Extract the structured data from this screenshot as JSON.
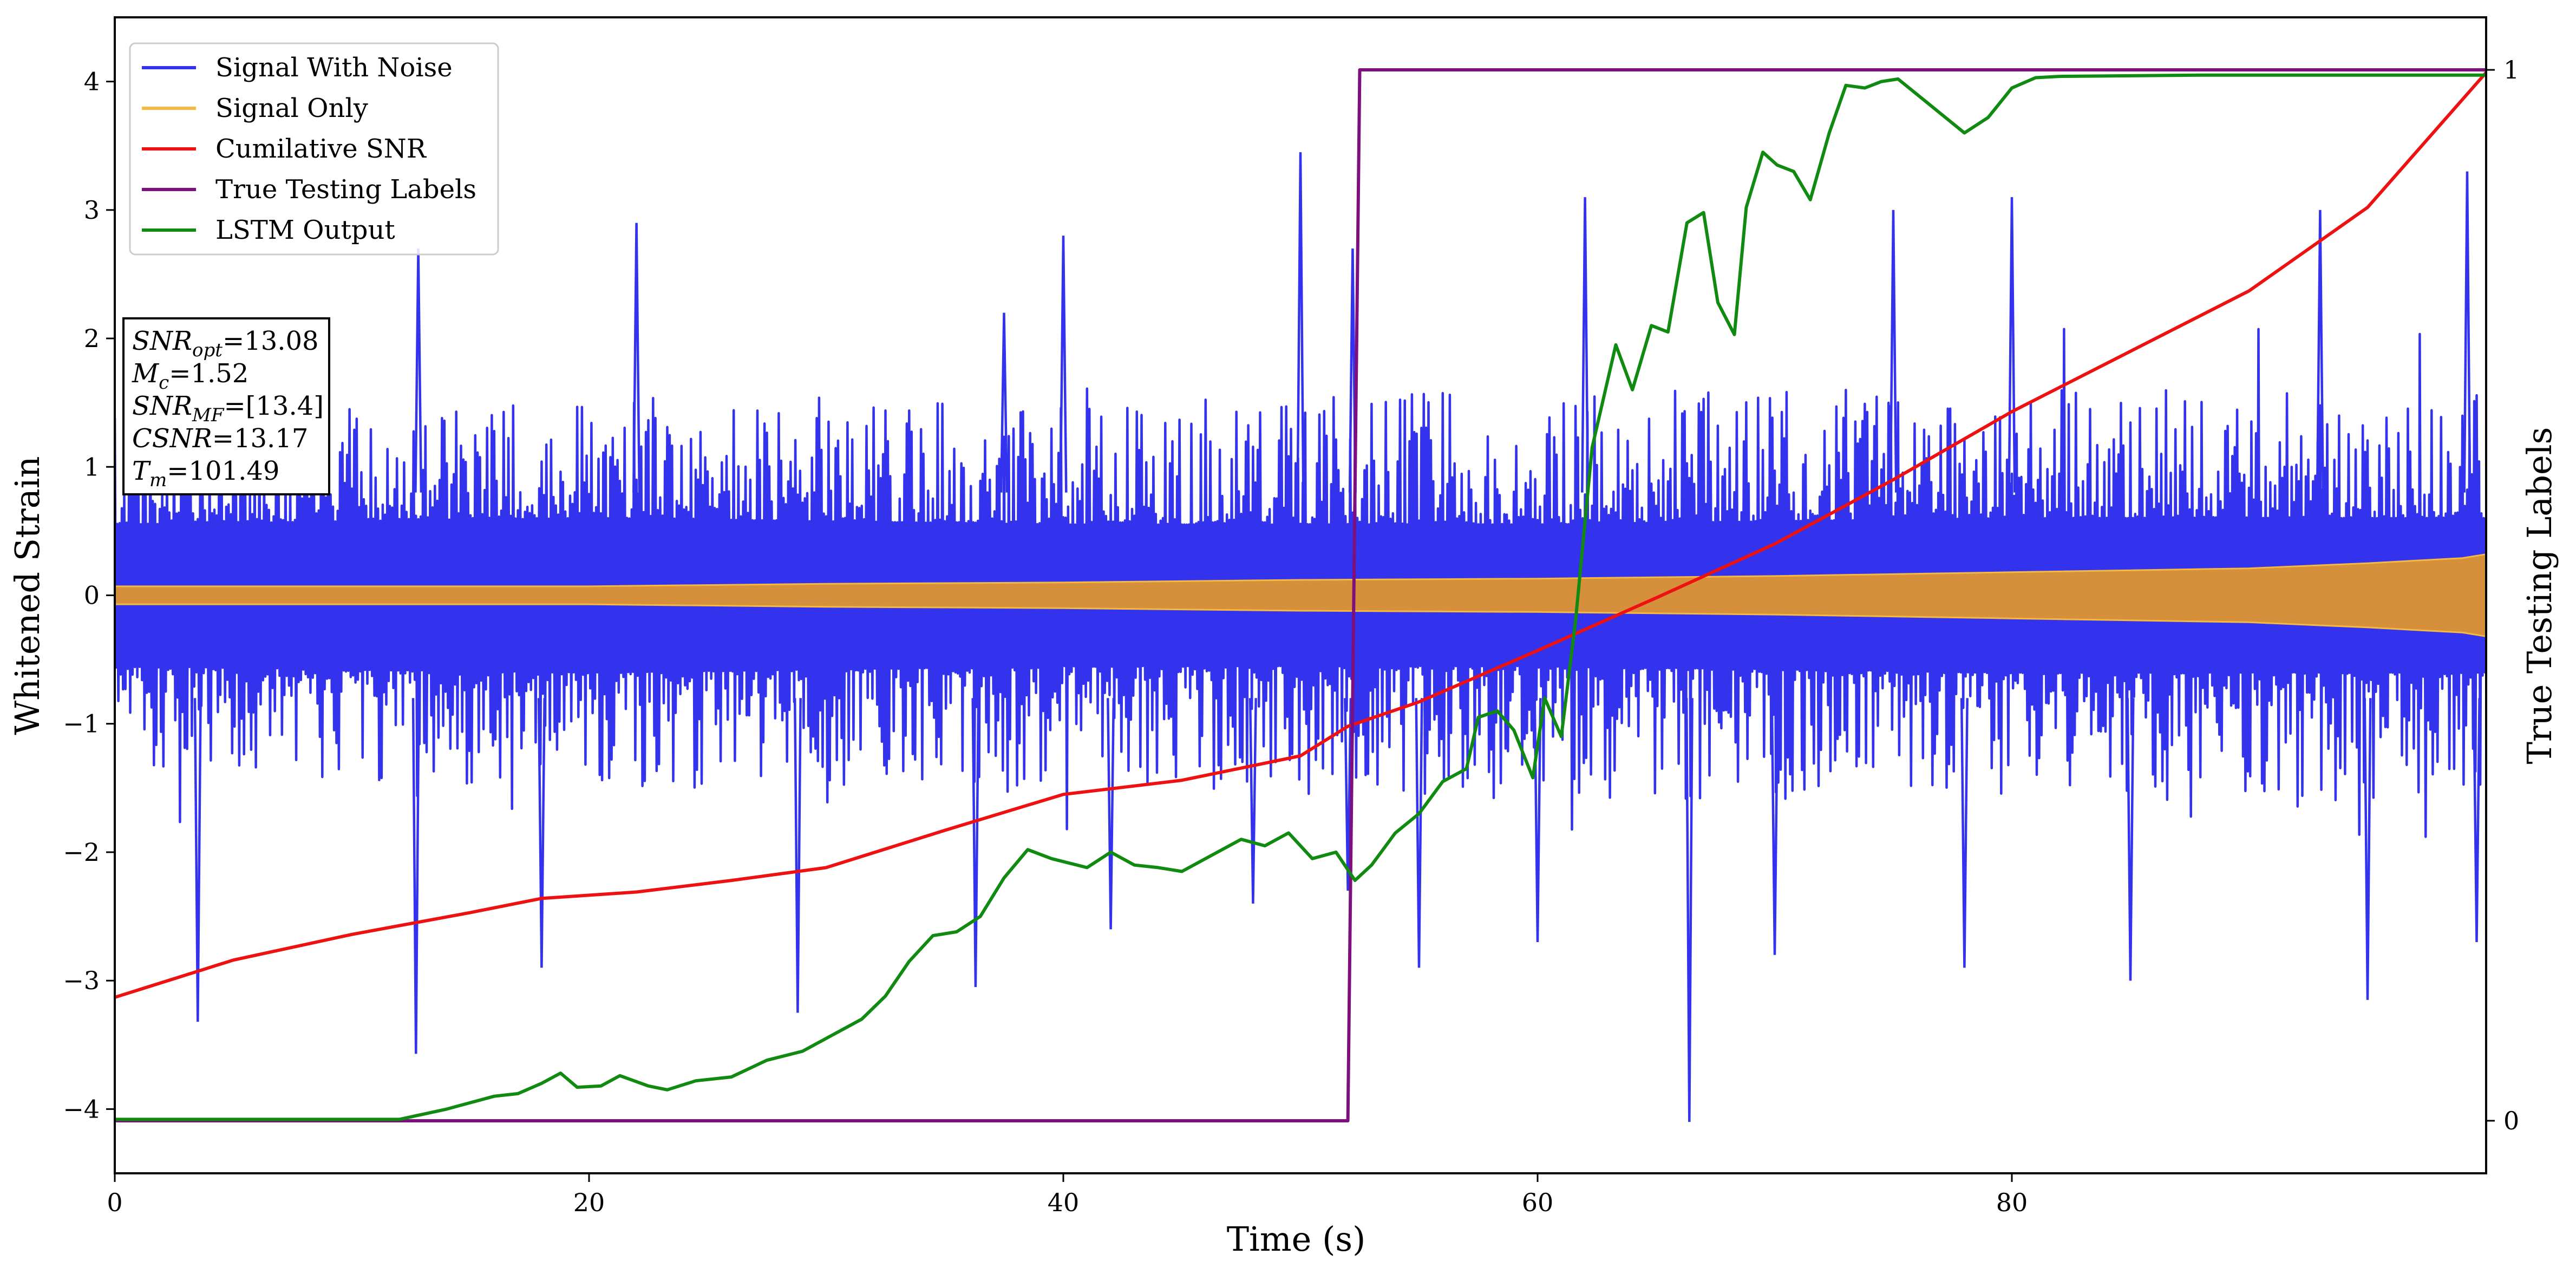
{
  "chart_data": {
    "type": "line",
    "xlabel": "Time (s)",
    "ylabel": "Whitened Strain",
    "y2label": "True Testing Labels",
    "xlim": [
      0,
      100
    ],
    "ylim": [
      -4.5,
      4.5
    ],
    "y2lim": [
      -0.05,
      1.05
    ],
    "x_ticks": [
      0,
      20,
      40,
      60,
      80
    ],
    "y_ticks": [
      -4,
      -3,
      -2,
      -1,
      0,
      1,
      2,
      3,
      4
    ],
    "y_tick_labels": [
      "−4",
      "−3",
      "−2",
      "−1",
      "0",
      "1",
      "2",
      "3",
      "4"
    ],
    "y2_ticks": [
      0,
      1
    ],
    "grid": false,
    "legend_position": "top-left",
    "legend": [
      {
        "label": "Signal With Noise",
        "color": "#3333ee"
      },
      {
        "label": "Signal Only",
        "color": "#f5b942"
      },
      {
        "label": "Cumilative SNR",
        "color": "#ee1111"
      },
      {
        "label": "True Testing Labels",
        "color": "#7e0f7e"
      },
      {
        "label": "LSTM Output",
        "color": "#108a10"
      }
    ],
    "annotation": [
      {
        "base": "SNR",
        "sub": "opt",
        "value": "=13.08"
      },
      {
        "base": "M",
        "sub": "c",
        "value": "=1.52"
      },
      {
        "base": "SNR",
        "sub": "MF",
        "value": "=[13.4]"
      },
      {
        "base": "CSNR",
        "sub": "",
        "value": "=13.17"
      },
      {
        "base": "T",
        "sub": "m",
        "value": "=101.49"
      }
    ],
    "series": [
      {
        "name": "Signal With Noise",
        "color": "#3333ee",
        "axis": "left",
        "kind": "dense-noise",
        "noise_band": [
          [
            0,
            0.55,
            1.4
          ],
          [
            20,
            0.6,
            1.5
          ],
          [
            40,
            0.55,
            1.5
          ],
          [
            60,
            0.55,
            1.6
          ],
          [
            80,
            0.6,
            1.6
          ],
          [
            100,
            0.6,
            1.6
          ]
        ],
        "spikes": [
          [
            3.5,
            -3.32
          ],
          [
            12.7,
            -3.57
          ],
          [
            12.8,
            2.7
          ],
          [
            18.0,
            -2.9
          ],
          [
            22.0,
            2.9
          ],
          [
            28.8,
            -3.25
          ],
          [
            36.3,
            -3.05
          ],
          [
            37.5,
            2.2
          ],
          [
            40.0,
            2.8
          ],
          [
            42.0,
            -2.6
          ],
          [
            48.0,
            -2.4
          ],
          [
            50.0,
            3.45
          ],
          [
            52.0,
            -2.3
          ],
          [
            52.2,
            2.7
          ],
          [
            55.0,
            -2.9
          ],
          [
            60.0,
            -2.7
          ],
          [
            62.0,
            3.1
          ],
          [
            66.4,
            -4.1
          ],
          [
            70.0,
            -2.8
          ],
          [
            75.0,
            3.0
          ],
          [
            78.0,
            -2.9
          ],
          [
            80.0,
            3.1
          ],
          [
            85.0,
            -3.0
          ],
          [
            93.0,
            3.0
          ],
          [
            95.0,
            -3.15
          ],
          [
            99.2,
            3.3
          ],
          [
            99.6,
            -2.7
          ]
        ]
      },
      {
        "name": "Signal Only",
        "color": "#f5b942",
        "axis": "left",
        "kind": "amplitude-band",
        "amplitude": [
          [
            0,
            0.07
          ],
          [
            10,
            0.07
          ],
          [
            20,
            0.07
          ],
          [
            30,
            0.09
          ],
          [
            40,
            0.1
          ],
          [
            50,
            0.12
          ],
          [
            60,
            0.13
          ],
          [
            70,
            0.15
          ],
          [
            80,
            0.18
          ],
          [
            90,
            0.21
          ],
          [
            95,
            0.25
          ],
          [
            99,
            0.29
          ],
          [
            100,
            0.32
          ]
        ]
      },
      {
        "name": "Cumilative SNR",
        "color": "#ee1111",
        "axis": "left",
        "points": [
          [
            0,
            -3.13
          ],
          [
            5,
            -2.84
          ],
          [
            10,
            -2.64
          ],
          [
            15,
            -2.47
          ],
          [
            18,
            -2.36
          ],
          [
            22,
            -2.31
          ],
          [
            26,
            -2.22
          ],
          [
            30,
            -2.12
          ],
          [
            35,
            -1.83
          ],
          [
            40,
            -1.55
          ],
          [
            45,
            -1.44
          ],
          [
            50,
            -1.25
          ],
          [
            52,
            -1.02
          ],
          [
            55,
            -0.83
          ],
          [
            60,
            -0.43
          ],
          [
            65,
            -0.02
          ],
          [
            70,
            0.4
          ],
          [
            75,
            0.9
          ],
          [
            80,
            1.43
          ],
          [
            85,
            1.9
          ],
          [
            90,
            2.37
          ],
          [
            95,
            3.02
          ],
          [
            100,
            4.07
          ]
        ]
      },
      {
        "name": "True Testing Labels",
        "color": "#7e0f7e",
        "axis": "right",
        "points": [
          [
            0,
            0
          ],
          [
            52.0,
            0
          ],
          [
            52.5,
            1
          ],
          [
            100,
            1
          ]
        ]
      },
      {
        "name": "LSTM Output",
        "color": "#108a10",
        "axis": "left",
        "points": [
          [
            0,
            -4.08
          ],
          [
            12,
            -4.08
          ],
          [
            13,
            -4.04
          ],
          [
            14,
            -4.0
          ],
          [
            15,
            -3.95
          ],
          [
            16,
            -3.9
          ],
          [
            17,
            -3.88
          ],
          [
            18,
            -3.8
          ],
          [
            18.8,
            -3.72
          ],
          [
            19.5,
            -3.83
          ],
          [
            20.5,
            -3.82
          ],
          [
            21.3,
            -3.74
          ],
          [
            22.5,
            -3.82
          ],
          [
            23.3,
            -3.85
          ],
          [
            24.5,
            -3.78
          ],
          [
            26,
            -3.75
          ],
          [
            27.5,
            -3.62
          ],
          [
            29,
            -3.55
          ],
          [
            30,
            -3.45
          ],
          [
            31.5,
            -3.3
          ],
          [
            32.5,
            -3.12
          ],
          [
            33.5,
            -2.85
          ],
          [
            34.5,
            -2.65
          ],
          [
            35.5,
            -2.62
          ],
          [
            36.5,
            -2.5
          ],
          [
            37.5,
            -2.2
          ],
          [
            38.5,
            -1.98
          ],
          [
            39.5,
            -2.05
          ],
          [
            41,
            -2.12
          ],
          [
            42,
            -2.0
          ],
          [
            43,
            -2.1
          ],
          [
            44,
            -2.12
          ],
          [
            45,
            -2.15
          ],
          [
            46.5,
            -2.0
          ],
          [
            47.5,
            -1.9
          ],
          [
            48.5,
            -1.95
          ],
          [
            49.5,
            -1.85
          ],
          [
            50.5,
            -2.05
          ],
          [
            51.5,
            -2.0
          ],
          [
            52.3,
            -2.22
          ],
          [
            53,
            -2.1
          ],
          [
            54,
            -1.85
          ],
          [
            55,
            -1.7
          ],
          [
            56,
            -1.45
          ],
          [
            57,
            -1.35
          ],
          [
            57.5,
            -0.95
          ],
          [
            58.3,
            -0.9
          ],
          [
            59,
            -1.05
          ],
          [
            59.8,
            -1.42
          ],
          [
            60.3,
            -0.8
          ],
          [
            61,
            -1.1
          ],
          [
            61.6,
            -0.2
          ],
          [
            62.3,
            1.15
          ],
          [
            63.3,
            1.95
          ],
          [
            64,
            1.6
          ],
          [
            64.8,
            2.1
          ],
          [
            65.5,
            2.05
          ],
          [
            66.3,
            2.9
          ],
          [
            67,
            2.98
          ],
          [
            67.6,
            2.28
          ],
          [
            68.3,
            2.03
          ],
          [
            68.8,
            3.02
          ],
          [
            69.5,
            3.45
          ],
          [
            70.1,
            3.35
          ],
          [
            70.8,
            3.3
          ],
          [
            71.5,
            3.08
          ],
          [
            72.3,
            3.6
          ],
          [
            73,
            3.97
          ],
          [
            73.8,
            3.95
          ],
          [
            74.5,
            4.0
          ],
          [
            75.2,
            4.02
          ],
          [
            76,
            3.9
          ],
          [
            77,
            3.75
          ],
          [
            78,
            3.6
          ],
          [
            79,
            3.72
          ],
          [
            80,
            3.95
          ],
          [
            81,
            4.03
          ],
          [
            82,
            4.04
          ],
          [
            88,
            4.05
          ],
          [
            100,
            4.05
          ]
        ]
      }
    ]
  }
}
